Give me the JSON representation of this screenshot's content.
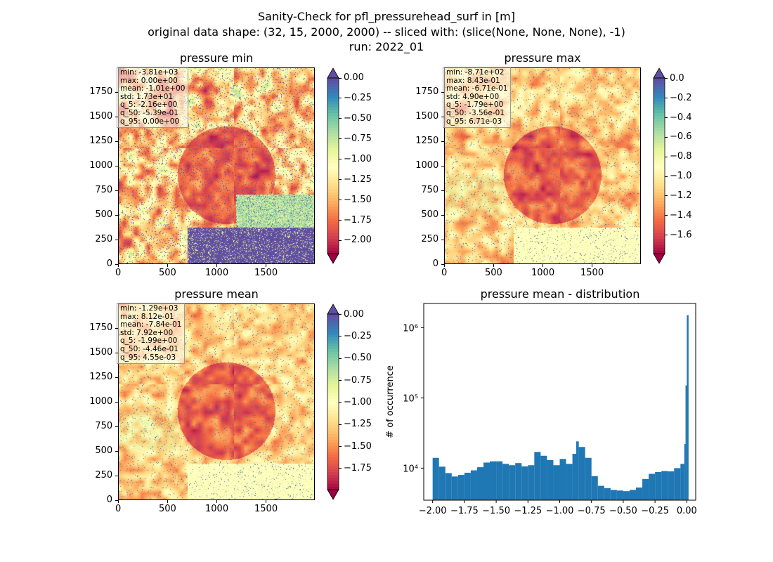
{
  "suptitle": {
    "line1": "Sanity-Check for pfl_pressurehead_surf in [m]",
    "line2": "original data shape: (32, 15, 2000, 2000) -- sliced with: (slice(None, None, None), -1)",
    "line3": "run: 2022_01"
  },
  "panels": {
    "min": {
      "title": "pressure min",
      "stats": [
        "min: -3.81e+03",
        "max: 0.00e+00",
        "mean: -1.01e+00",
        "std: 1.73e+01",
        "q_5: -2.16e+00",
        "q_50: -5.39e-01",
        "q_95: 0.00e+00"
      ],
      "colorbar_ticks": [
        "0.00",
        "−0.25",
        "−0.50",
        "−0.75",
        "−1.00",
        "−1.25",
        "−1.50",
        "−1.75",
        "−2.00"
      ],
      "colorbar_tick_values": [
        0.0,
        -0.25,
        -0.5,
        -0.75,
        -1.0,
        -1.25,
        -1.5,
        -1.75,
        -2.0
      ],
      "colorbar_range": [
        -2.16,
        0.0
      ]
    },
    "max": {
      "title": "pressure max",
      "stats": [
        "min: -8.71e+02",
        "max: 8.43e-01",
        "mean: -6.71e-01",
        "std: 4.90e+00",
        "q_5: -1.79e+00",
        "q_50: -3.56e-01",
        "q_95: 6.71e-03"
      ],
      "colorbar_ticks": [
        "0.0",
        "−0.2",
        "−0.4",
        "−0.6",
        "−0.8",
        "−1.0",
        "−1.2",
        "−1.4",
        "−1.6"
      ],
      "colorbar_tick_values": [
        0.0,
        -0.2,
        -0.4,
        -0.6,
        -0.8,
        -1.0,
        -1.2,
        -1.4,
        -1.6
      ],
      "colorbar_range": [
        -1.79,
        0.0067
      ]
    },
    "mean": {
      "title": "pressure mean",
      "stats": [
        "min: -1.29e+03",
        "max: 8.12e-01",
        "mean: -7.84e-01",
        "std: 7.92e+00",
        "q_5: -1.99e+00",
        "q_50: -4.46e-01",
        "q_95: 4.55e-03"
      ],
      "colorbar_ticks": [
        "0.00",
        "−0.25",
        "−0.50",
        "−0.75",
        "−1.00",
        "−1.25",
        "−1.50",
        "−1.75"
      ],
      "colorbar_tick_values": [
        0.0,
        -0.25,
        -0.5,
        -0.75,
        -1.0,
        -1.25,
        -1.5,
        -1.75
      ],
      "colorbar_range": [
        -1.99,
        0.0046
      ]
    }
  },
  "map_axes": {
    "xticks": [
      "0",
      "500",
      "1000",
      "1500"
    ],
    "yticks": [
      "0",
      "250",
      "500",
      "750",
      "1000",
      "1250",
      "1500",
      "1750"
    ],
    "xlim": [
      0,
      2000
    ],
    "ylim": [
      0,
      2000
    ]
  },
  "colormap": "Spectral",
  "chart_data": [
    {
      "type": "heatmap",
      "title": "pressure min",
      "xlim": [
        0,
        2000
      ],
      "ylim": [
        0,
        2000
      ],
      "color_range": [
        -2.16,
        0.0
      ],
      "colormap": "Spectral"
    },
    {
      "type": "heatmap",
      "title": "pressure max",
      "xlim": [
        0,
        2000
      ],
      "ylim": [
        0,
        2000
      ],
      "color_range": [
        -1.79,
        0.0067
      ],
      "colormap": "Spectral"
    },
    {
      "type": "heatmap",
      "title": "pressure mean",
      "xlim": [
        0,
        2000
      ],
      "ylim": [
        0,
        2000
      ],
      "color_range": [
        -1.99,
        0.0046
      ],
      "colormap": "Spectral"
    },
    {
      "type": "bar",
      "title": "pressure mean - distribution",
      "xlabel": "",
      "ylabel": "# of occurrence",
      "yscale": "log",
      "xlim": [
        -2.07,
        0.07
      ],
      "ylim": [
        3500,
        2200000
      ],
      "xticks": [
        "−2.00",
        "−1.75",
        "−1.50",
        "−1.25",
        "−1.00",
        "−0.75",
        "−0.50",
        "−0.25",
        "0.00"
      ],
      "xtick_values": [
        -2.0,
        -1.75,
        -1.5,
        -1.25,
        -1.0,
        -0.75,
        -0.5,
        -0.25,
        0.0
      ],
      "yticks": [
        "10⁴",
        "10⁵",
        "10⁶"
      ],
      "ytick_values": [
        10000,
        100000,
        1000000
      ],
      "color": "#1f77b4",
      "bin_x": [
        -2.0,
        -1.95,
        -1.9,
        -1.85,
        -1.8,
        -1.75,
        -1.7,
        -1.65,
        -1.6,
        -1.55,
        -1.5,
        -1.45,
        -1.4,
        -1.35,
        -1.3,
        -1.25,
        -1.2,
        -1.15,
        -1.1,
        -1.05,
        -1.0,
        -0.95,
        -0.9,
        -0.87,
        -0.85,
        -0.8,
        -0.75,
        -0.7,
        -0.65,
        -0.6,
        -0.55,
        -0.5,
        -0.45,
        -0.4,
        -0.35,
        -0.3,
        -0.25,
        -0.2,
        -0.15,
        -0.1,
        -0.05,
        -0.02,
        -0.01,
        0.0
      ],
      "bin_counts": [
        14000,
        10500,
        8500,
        7600,
        8000,
        8600,
        9300,
        10300,
        12000,
        12500,
        12500,
        11500,
        11000,
        11800,
        10600,
        11000,
        17000,
        15000,
        13000,
        11000,
        13500,
        11500,
        16000,
        24000,
        20000,
        14000,
        7700,
        5600,
        5200,
        4900,
        4800,
        4700,
        4900,
        5300,
        7000,
        8300,
        8800,
        9100,
        9000,
        10000,
        11500,
        22000,
        150000,
        1500000
      ]
    }
  ]
}
